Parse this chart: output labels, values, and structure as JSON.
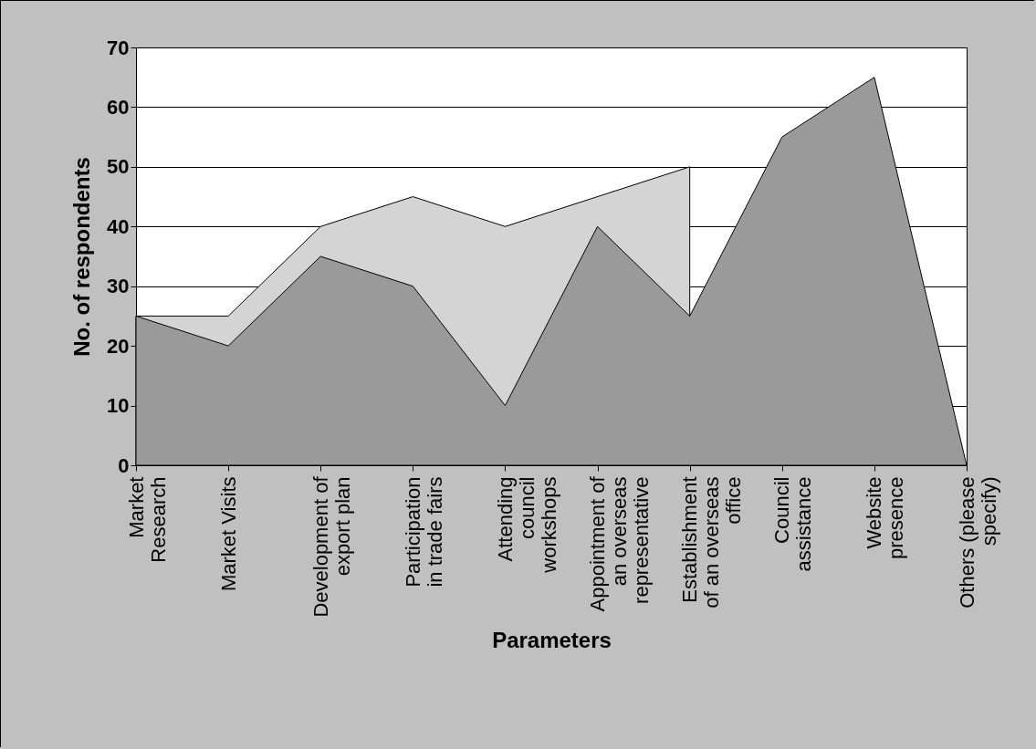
{
  "chart_data": {
    "type": "area",
    "xlabel": "Parameters",
    "ylabel": "No. of respondents",
    "categories": [
      "Market Research",
      "Market Visits",
      "Development of export plan",
      "Participation in trade fairs",
      "Attending council workshops",
      "Appointment of an overseas representative",
      "Establishment of an overseas office",
      "Council assistance",
      "Website presence",
      "Others (please specify)"
    ],
    "series": [
      {
        "color": "#d4d4d4",
        "values": [
          25,
          25,
          40,
          45,
          40,
          null,
          50,
          null,
          null,
          null
        ]
      },
      {
        "color": "#9a9a9a",
        "values": [
          25,
          20,
          35,
          30,
          10,
          40,
          25,
          55,
          65,
          0
        ]
      }
    ],
    "ylim": [
      0,
      70
    ],
    "yticks": [
      0,
      10,
      20,
      30,
      40,
      50,
      60,
      70
    ],
    "grid": "y",
    "legend": false
  }
}
